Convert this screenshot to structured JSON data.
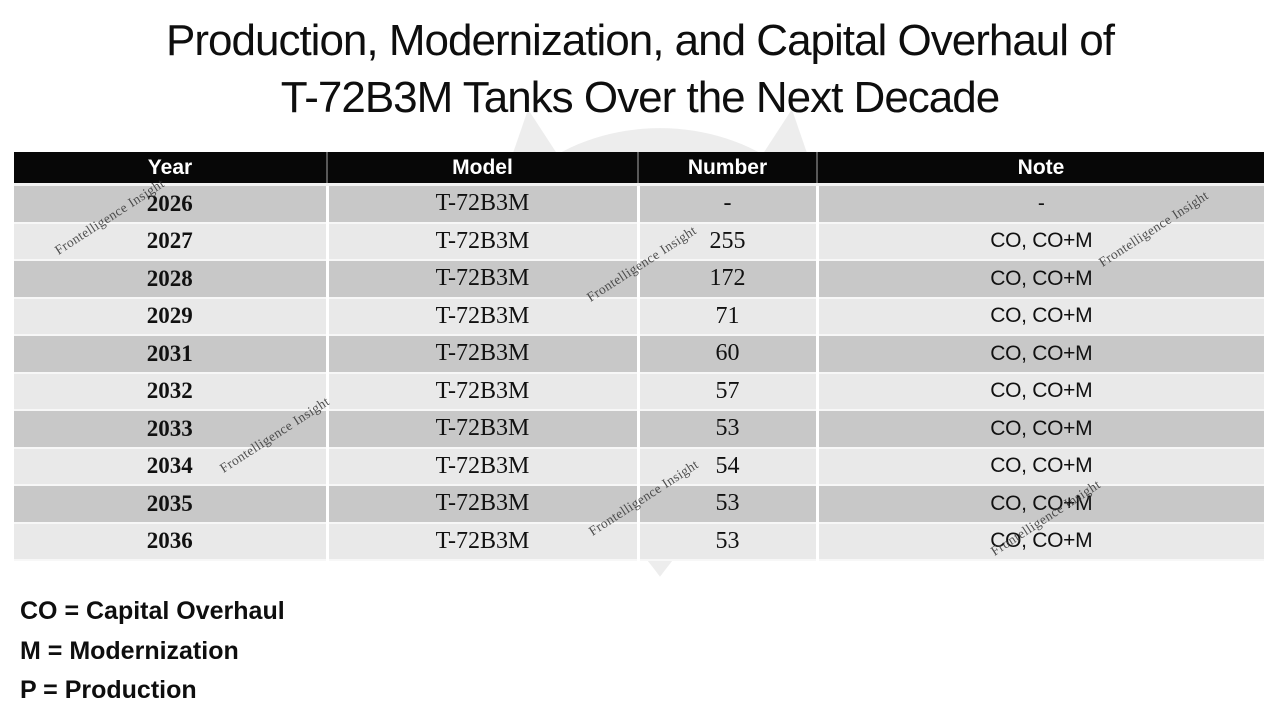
{
  "title": {
    "line1": "Production, Modernization, and Capital Overhaul of",
    "line2": "T-72B3M Tanks Over the Next Decade"
  },
  "table": {
    "columns": [
      "Year",
      "Model",
      "Number",
      "Note"
    ],
    "rows": [
      {
        "year": "2026",
        "model": "T-72B3M",
        "number": "-",
        "note": "-"
      },
      {
        "year": "2027",
        "model": "T-72B3M",
        "number": "255",
        "note": "CO, CO+M"
      },
      {
        "year": "2028",
        "model": "T-72B3M",
        "number": "172",
        "note": "CO, CO+M"
      },
      {
        "year": "2029",
        "model": "T-72B3M",
        "number": "71",
        "note": "CO, CO+M"
      },
      {
        "year": "2031",
        "model": "T-72B3M",
        "number": "60",
        "note": "CO, CO+M"
      },
      {
        "year": "2032",
        "model": "T-72B3M",
        "number": "57",
        "note": "CO, CO+M"
      },
      {
        "year": "2033",
        "model": "T-72B3M",
        "number": "53",
        "note": "CO, CO+M"
      },
      {
        "year": "2034",
        "model": "T-72B3M",
        "number": "54",
        "note": "CO, CO+M"
      },
      {
        "year": "2035",
        "model": "T-72B3M",
        "number": "53",
        "note": "CO, CO+M"
      },
      {
        "year": "2036",
        "model": "T-72B3M",
        "number": "53",
        "note": "CO, CO+M"
      }
    ]
  },
  "legend": {
    "items": [
      "CO = Capital Overhaul",
      "M = Modernization",
      "P = Production"
    ]
  },
  "watermark": {
    "text": "Frontelligence Insight"
  },
  "background_emblem": "owl-logo",
  "colors": {
    "header_bg": "#070707",
    "header_text": "#ffffff",
    "row_dark": "#c8c8c8",
    "row_light": "#e9e9e9",
    "row_divider": "#f7f7f7",
    "body_text": "#111111",
    "watermark_text": "#3a3a3a"
  },
  "chart_data": {
    "type": "table",
    "title": "Production, Modernization, and Capital Overhaul of T-72B3M Tanks Over the Next Decade",
    "columns": [
      "Year",
      "Model",
      "Number",
      "Note"
    ],
    "categories": [
      "2026",
      "2027",
      "2028",
      "2029",
      "2031",
      "2032",
      "2033",
      "2034",
      "2035",
      "2036"
    ],
    "series": [
      {
        "name": "Model",
        "values": [
          "T-72B3M",
          "T-72B3M",
          "T-72B3M",
          "T-72B3M",
          "T-72B3M",
          "T-72B3M",
          "T-72B3M",
          "T-72B3M",
          "T-72B3M",
          "T-72B3M"
        ]
      },
      {
        "name": "Number",
        "values": [
          null,
          255,
          172,
          71,
          60,
          57,
          53,
          54,
          53,
          53
        ]
      },
      {
        "name": "Note",
        "values": [
          "-",
          "CO, CO+M",
          "CO, CO+M",
          "CO, CO+M",
          "CO, CO+M",
          "CO, CO+M",
          "CO, CO+M",
          "CO, CO+M",
          "CO, CO+M",
          "CO, CO+M"
        ]
      }
    ],
    "annotations": [
      "CO = Capital Overhaul",
      "M = Modernization",
      "P = Production"
    ]
  }
}
